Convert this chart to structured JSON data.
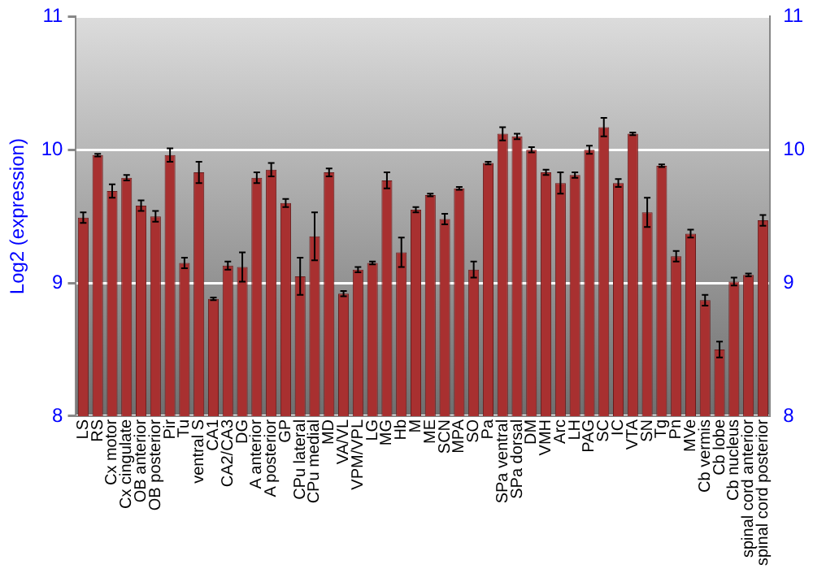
{
  "chart_data": {
    "type": "bar",
    "ylabel": "Log2 (expression)",
    "categories": [
      "LS",
      "RS",
      "Cx motor",
      "Cx cingulate",
      "OB anterior",
      "OB posterior",
      "Pir",
      "Tu",
      "ventral S",
      "CA1",
      "CA2/CA3",
      "DG",
      "A anterior",
      "A posterior",
      "GP",
      "CPu lateral",
      "CPu medial",
      "MD",
      "VA/VL",
      "VPM/VPL",
      "LG",
      "MG",
      "Hb",
      "M",
      "ME",
      "SCN",
      "MPA",
      "SO",
      "Pa",
      "SPa ventral",
      "SPa dorsal",
      "DM",
      "VMH",
      "Arc",
      "LH",
      "PAG",
      "SC",
      "IC",
      "VTA",
      "SN",
      "Tg",
      "Pn",
      "MVe",
      "Cb vermis",
      "Cb lobe",
      "Cb nucleus",
      "spinal cord anterior",
      "spinal cord posterior"
    ],
    "values": [
      9.49,
      9.96,
      9.69,
      9.79,
      9.58,
      9.5,
      9.96,
      9.15,
      9.83,
      8.88,
      9.13,
      9.12,
      9.79,
      9.85,
      9.6,
      9.05,
      9.35,
      9.83,
      8.92,
      9.1,
      9.15,
      9.77,
      9.23,
      9.55,
      9.66,
      9.48,
      9.71,
      9.1,
      9.9,
      10.12,
      10.1,
      10.0,
      9.83,
      9.75,
      9.81,
      10.0,
      10.17,
      9.75,
      10.12,
      9.53,
      9.88,
      9.2,
      9.37,
      8.87,
      8.5,
      9.01,
      9.06,
      9.47
    ],
    "errors": [
      0.04,
      0.01,
      0.05,
      0.02,
      0.04,
      0.04,
      0.05,
      0.04,
      0.08,
      0.01,
      0.03,
      0.11,
      0.04,
      0.05,
      0.03,
      0.14,
      0.18,
      0.03,
      0.02,
      0.02,
      0.01,
      0.06,
      0.11,
      0.02,
      0.01,
      0.04,
      0.01,
      0.06,
      0.01,
      0.05,
      0.02,
      0.02,
      0.02,
      0.08,
      0.02,
      0.03,
      0.07,
      0.03,
      0.01,
      0.11,
      0.01,
      0.04,
      0.03,
      0.04,
      0.06,
      0.03,
      0.01,
      0.04
    ],
    "color": "#a83030",
    "ylim": [
      8,
      11
    ],
    "yticks": [
      8,
      9,
      10,
      11
    ],
    "y2lim": [
      8,
      11
    ],
    "y2ticks": [
      8,
      9,
      10,
      11
    ],
    "grid": "y",
    "legend": false
  }
}
